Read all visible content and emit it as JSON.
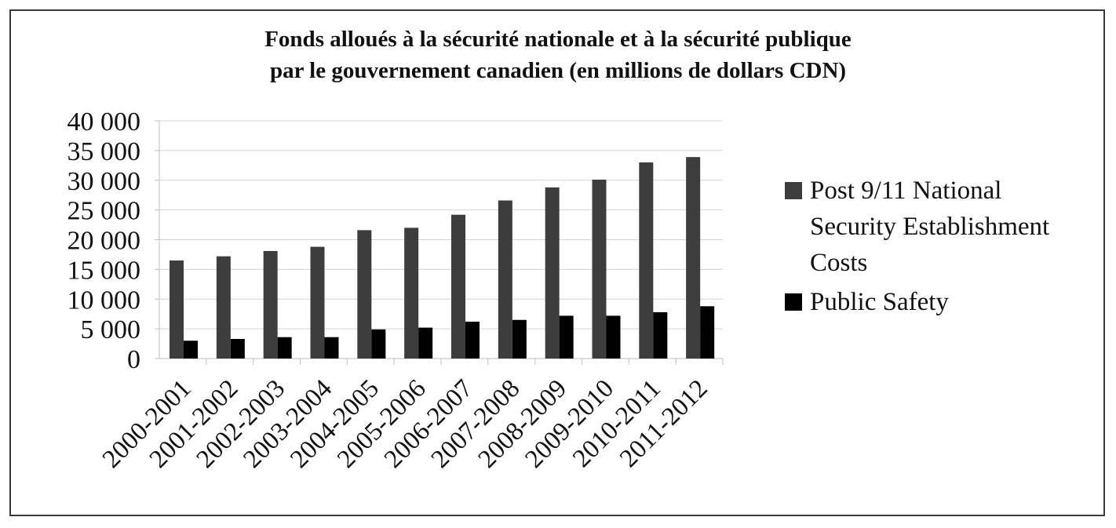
{
  "chart_data": {
    "type": "bar",
    "title": [
      "Fonds alloués à la sécurité nationale et à la sécurité publique",
      "par le gouvernement canadien (en millions de dollars CDN)"
    ],
    "categories": [
      "2000-2001",
      "2001-2002",
      "2002-2003",
      "2003-2004",
      "2004-2005",
      "2005-2006",
      "2006-2007",
      "2007-2008",
      "2008-2009",
      "2009-2010",
      "2010-2011",
      "2011-2012"
    ],
    "series": [
      {
        "name": [
          "Post 9/11 National",
          "Security Establishment",
          "Costs"
        ],
        "color": "#3d3d3d",
        "values": [
          16500,
          17200,
          18100,
          18800,
          21600,
          22000,
          24200,
          26600,
          28800,
          30100,
          33000,
          33900
        ]
      },
      {
        "name": [
          "Public Safety"
        ],
        "color": "#000000",
        "values": [
          3000,
          3300,
          3600,
          3600,
          4900,
          5200,
          6200,
          6500,
          7200,
          7200,
          7800,
          8800
        ]
      }
    ],
    "yticks": [
      "0",
      "5 000",
      "10 000",
      "15 000",
      "20 000",
      "25 000",
      "30 000",
      "35 000",
      "40 000"
    ],
    "ylim": [
      0,
      40000
    ],
    "grid": true,
    "legend_position": "right"
  }
}
